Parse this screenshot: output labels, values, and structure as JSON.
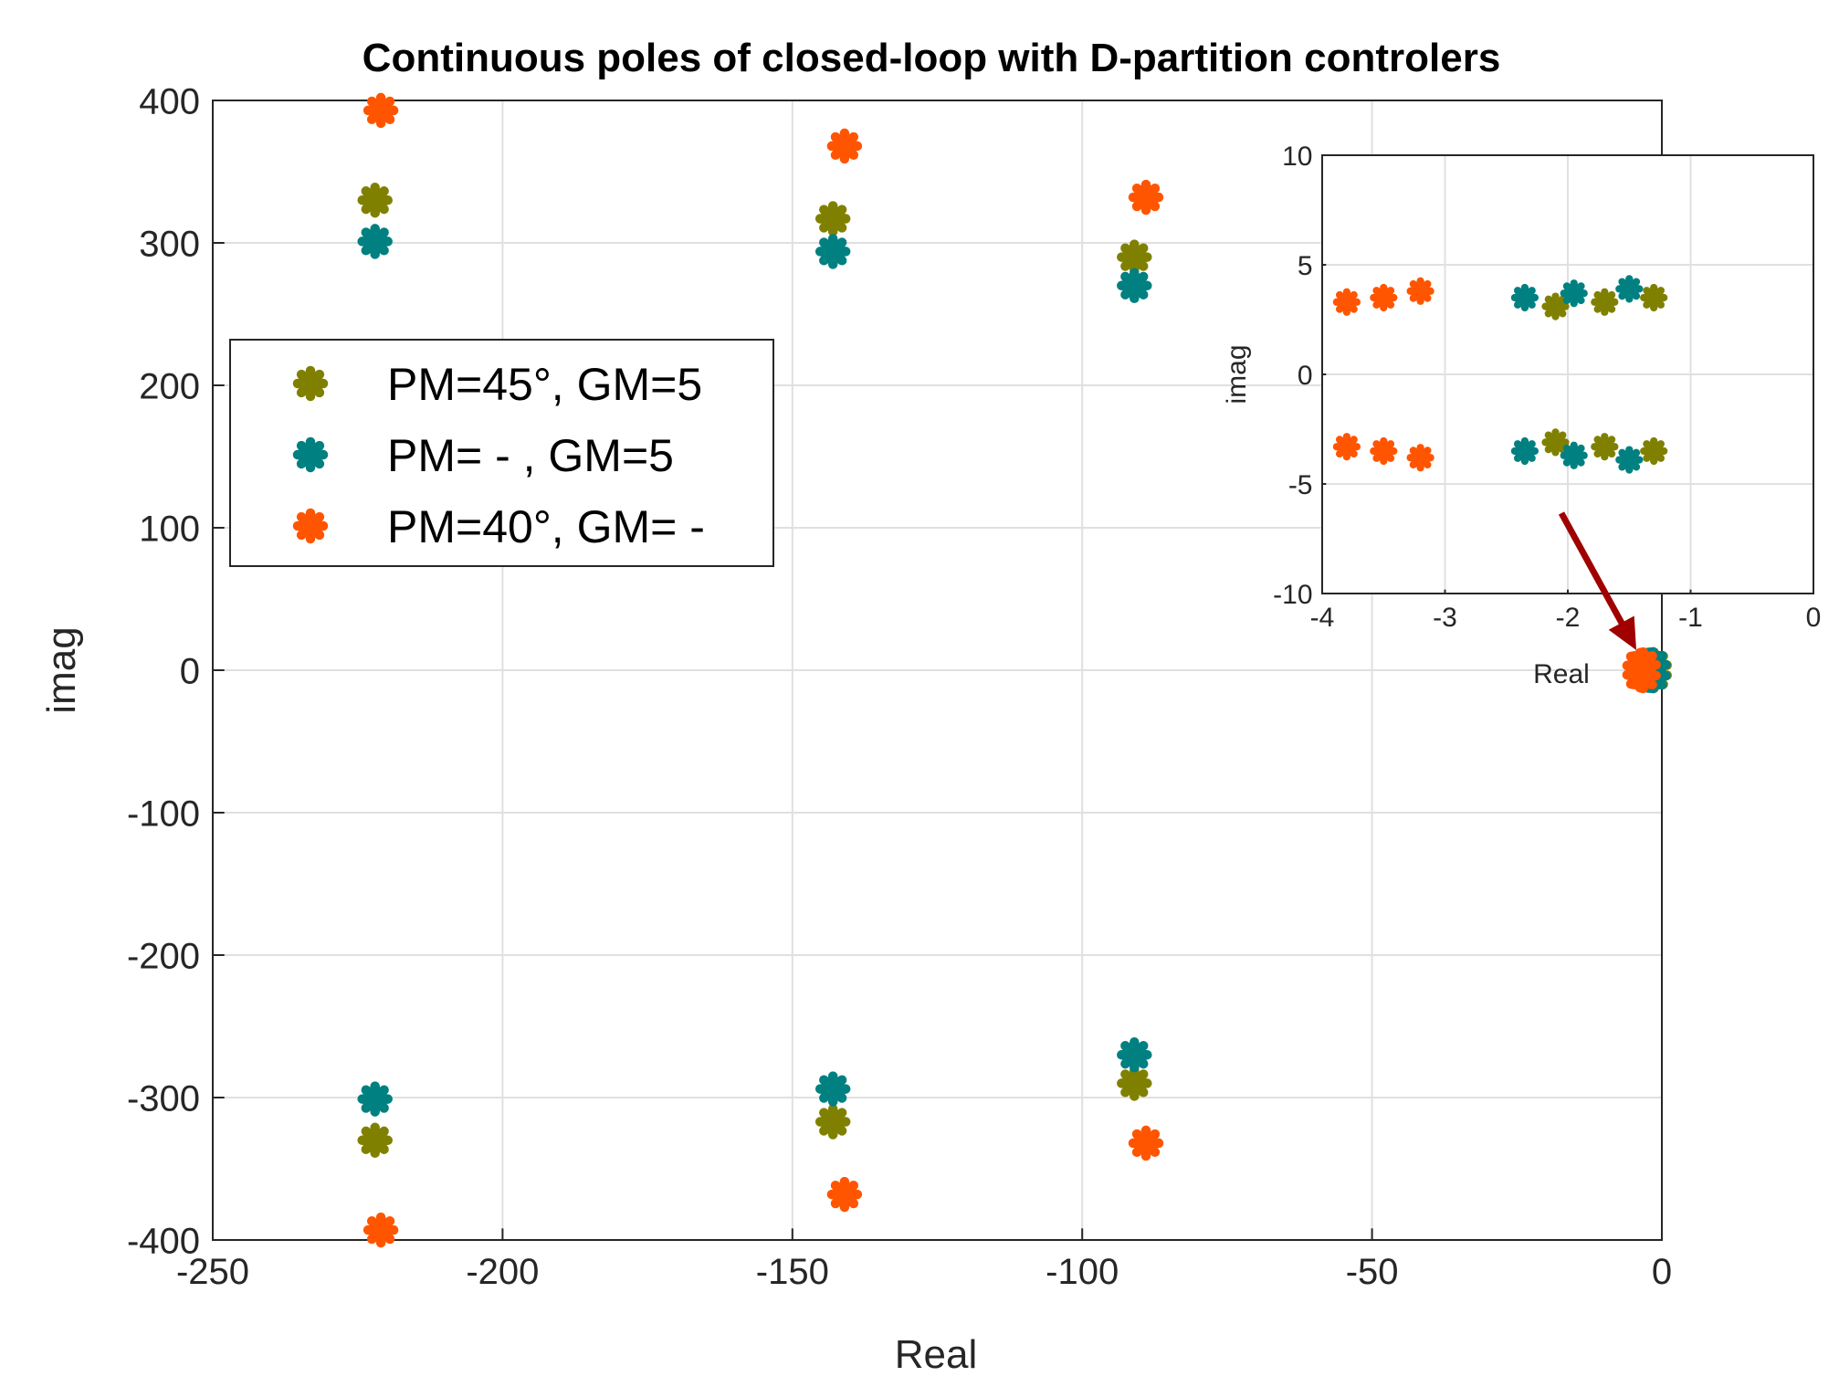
{
  "chart_data": [
    {
      "type": "scatter",
      "title": "Continuous poles of closed-loop with D-partition controlers",
      "xlabel": "Real",
      "ylabel": "imag",
      "xlim": [
        -250,
        0
      ],
      "ylim": [
        -400,
        400
      ],
      "xticks": [
        -250,
        -200,
        -150,
        -100,
        -50,
        0
      ],
      "yticks": [
        -400,
        -300,
        -200,
        -100,
        0,
        100,
        200,
        300,
        400
      ],
      "grid": true,
      "legend_position": "left-middle",
      "series": [
        {
          "name": "PM=45°, GM=5",
          "color": "#808000",
          "points": [
            [
              -222,
              330
            ],
            [
              -222,
              -330
            ],
            [
              -143,
              317
            ],
            [
              -143,
              -317
            ],
            [
              -91,
              290
            ],
            [
              -91,
              -290
            ],
            [
              -2.1,
              3.1
            ],
            [
              -2.1,
              -3.1
            ],
            [
              -1.7,
              3.3
            ],
            [
              -1.7,
              -3.3
            ],
            [
              -1.3,
              3.5
            ],
            [
              -1.3,
              -3.5
            ]
          ]
        },
        {
          "name": "PM=   - , GM=5",
          "color": "#008080",
          "points": [
            [
              -222,
              301
            ],
            [
              -222,
              -301
            ],
            [
              -143,
              294
            ],
            [
              -143,
              -294
            ],
            [
              -91,
              270
            ],
            [
              -91,
              -270
            ],
            [
              -2.35,
              3.5
            ],
            [
              -2.35,
              -3.5
            ],
            [
              -1.95,
              3.7
            ],
            [
              -1.95,
              -3.7
            ],
            [
              -1.5,
              3.9
            ],
            [
              -1.5,
              -3.9
            ]
          ]
        },
        {
          "name": "PM=40°, GM= -",
          "color": "#ff5500",
          "points": [
            [
              -221,
              393
            ],
            [
              -221,
              -393
            ],
            [
              -141,
              368
            ],
            [
              -141,
              -368
            ],
            [
              -89,
              332
            ],
            [
              -89,
              -332
            ],
            [
              -3.8,
              3.3
            ],
            [
              -3.8,
              -3.3
            ],
            [
              -3.5,
              3.5
            ],
            [
              -3.5,
              -3.5
            ],
            [
              -3.2,
              3.8
            ],
            [
              -3.2,
              -3.8
            ]
          ]
        }
      ]
    },
    {
      "type": "scatter",
      "title": "",
      "xlabel": "Real",
      "ylabel": "imag",
      "xlim": [
        -4,
        0
      ],
      "ylim": [
        -10,
        10
      ],
      "xticks": [
        -4,
        -3,
        -2,
        -1,
        0
      ],
      "yticks": [
        -10,
        -5,
        0,
        5,
        10
      ],
      "grid": true,
      "inset_of": "main",
      "arrow_color": "#a00000"
    }
  ]
}
